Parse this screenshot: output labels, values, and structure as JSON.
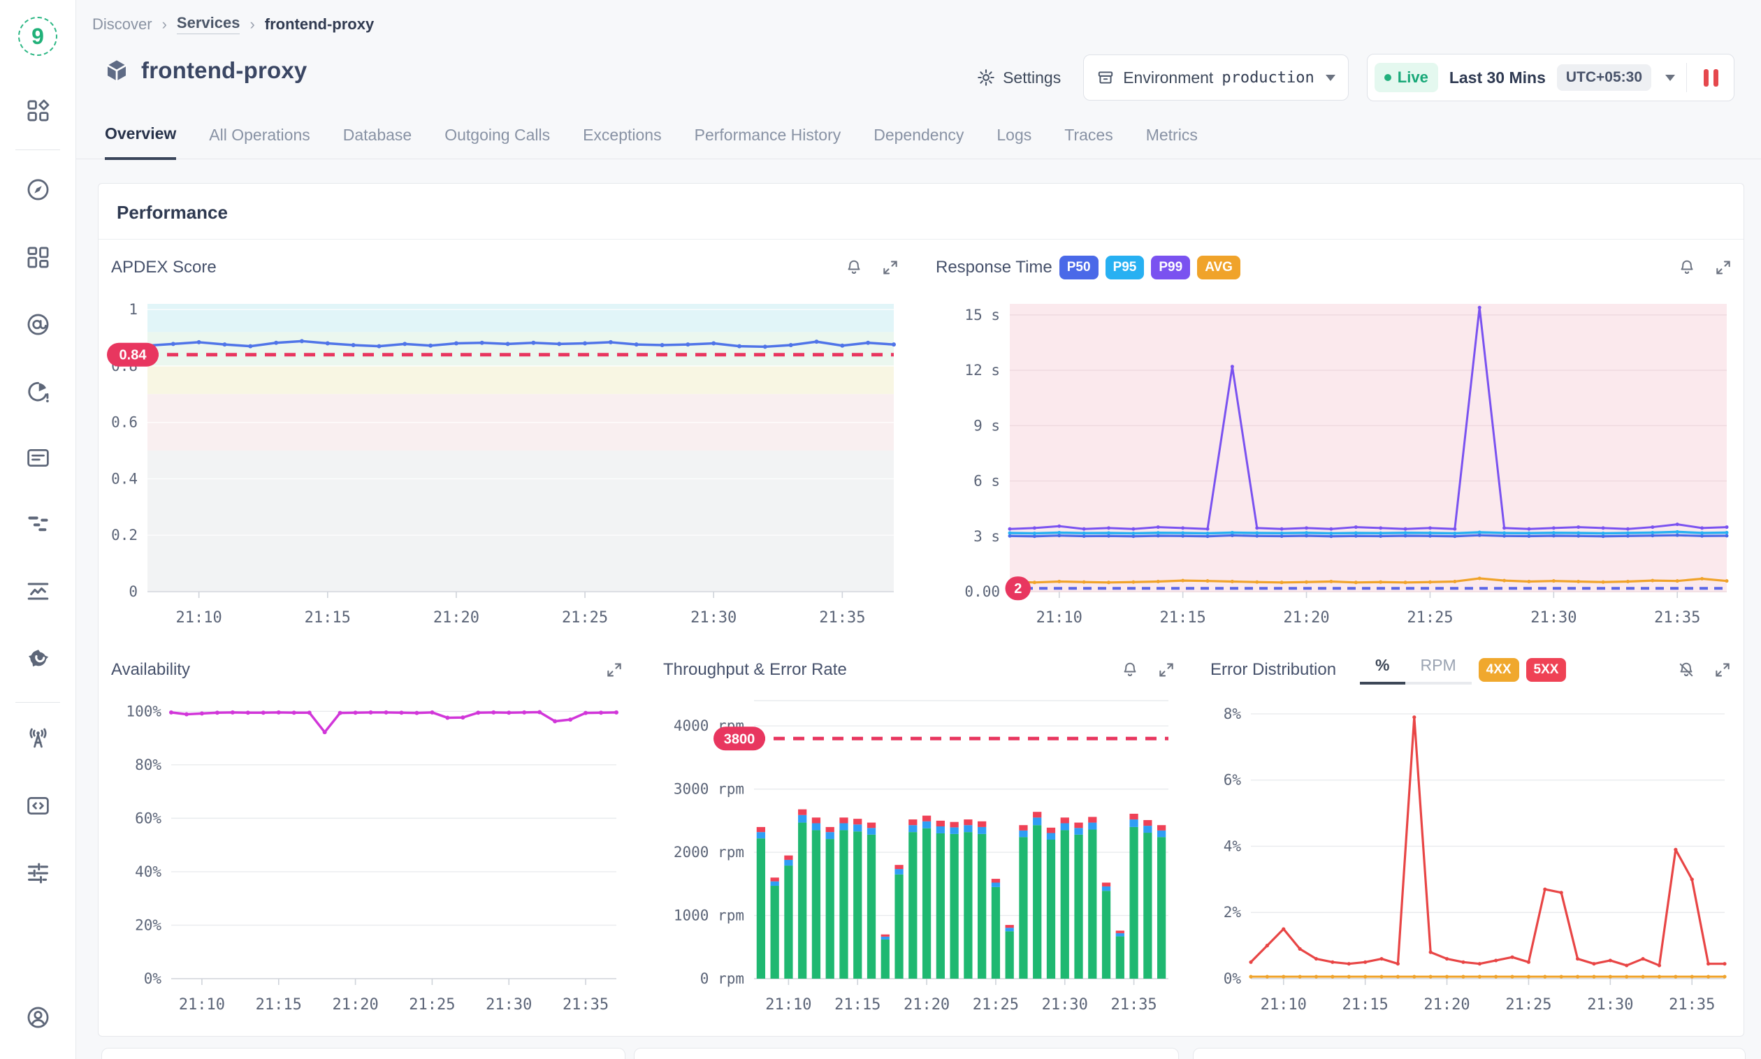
{
  "breadcrumb": {
    "root": "Discover",
    "section": "Services",
    "current": "frontend-proxy"
  },
  "header": {
    "service_name": "frontend-proxy",
    "settings_label": "Settings",
    "environment_label": "Environment",
    "environment_value": "production",
    "live_label": "Live",
    "time_range": "Last 30 Mins",
    "timezone": "UTC+05:30"
  },
  "sidebar_icons": [
    "home-grid-icon",
    "compass-icon",
    "dashboards-icon",
    "service-map-icon",
    "usage-alert-icon",
    "billing-card-icon",
    "traces-scatter-icon",
    "metrics-chart-icon",
    "grafana-icon",
    "broadcast-icon",
    "integrations-code-icon",
    "pipelines-sliders-icon",
    "account-icon"
  ],
  "tabs": [
    "Overview",
    "All Operations",
    "Database",
    "Outgoing Calls",
    "Exceptions",
    "Performance History",
    "Dependency",
    "Logs",
    "Traces",
    "Metrics"
  ],
  "active_tab": "Overview",
  "section_title": "Performance",
  "panels": {
    "apdex_title": "APDEX Score",
    "response_title": "Response Time",
    "response_badges": [
      "P50",
      "P95",
      "P99",
      "AVG"
    ],
    "availability_title": "Availability",
    "throughput_title": "Throughput & Error Rate",
    "errordist_title": "Error Distribution",
    "errordist_toggle_pct": "%",
    "errordist_toggle_rpm": "RPM",
    "errordist_badges": [
      "4XX",
      "5XX"
    ],
    "icon_names": [
      "alert-bell-icon",
      "expand-icon",
      "bell-muted-icon"
    ]
  },
  "colors": {
    "p50": "#4a69e8",
    "p95": "#27b0f2",
    "p99": "#7a52f0",
    "avg": "#f0a32a",
    "threshold_red": "#e8365f",
    "bar_green": "#1fb871",
    "bar_blue": "#2f9ef5",
    "bar_red": "#ef4156",
    "availability_magenta": "#d136d9",
    "error_5xx": "#e84545",
    "error_4xx": "#f0a32a",
    "live_green": "#18a878",
    "pause_red": "#e5484d",
    "badge_4xx": "#f0a82d",
    "badge_5xx": "#ef4255"
  },
  "chart_data": [
    {
      "id": "apdex",
      "type": "line",
      "title": "APDEX Score",
      "n": 30,
      "ylim": [
        0,
        1.02
      ],
      "grid_color": "rgba(255,255,255,0.85)",
      "baseline": true,
      "yticks": [
        {
          "v": 1,
          "label": "1"
        },
        {
          "v": 0.8,
          "label": "0.8"
        },
        {
          "v": 0.6,
          "label": "0.6"
        },
        {
          "v": 0.4,
          "label": "0.4"
        },
        {
          "v": 0.2,
          "label": "0.2"
        },
        {
          "v": 0,
          "label": "0"
        }
      ],
      "x_ticks": [
        {
          "i": 2,
          "label": "21:10"
        },
        {
          "i": 7,
          "label": "21:15"
        },
        {
          "i": 12,
          "label": "21:20"
        },
        {
          "i": 17,
          "label": "21:25"
        },
        {
          "i": 22,
          "label": "21:30"
        },
        {
          "i": 27,
          "label": "21:35"
        }
      ],
      "bands": [
        {
          "from": 0.92,
          "to": 1.02,
          "color": "#e1f5f8"
        },
        {
          "from": 0.8,
          "to": 0.92,
          "color": "#ebf7ef"
        },
        {
          "from": 0.7,
          "to": 0.8,
          "color": "#f8f6e3"
        },
        {
          "from": 0.5,
          "to": 0.7,
          "color": "#f9eff0"
        },
        {
          "from": 0,
          "to": 0.5,
          "color": "#f2f3f4"
        }
      ],
      "thresholds": [
        {
          "v": 0.84,
          "color": "#e8365f",
          "badge": "0.84",
          "width": 5
        }
      ],
      "series": [
        {
          "name": "apdex",
          "color": "#4f74e8",
          "width": 3.5,
          "marker": 3,
          "values": [
            0.872,
            0.878,
            0.884,
            0.876,
            0.87,
            0.882,
            0.888,
            0.88,
            0.874,
            0.87,
            0.878,
            0.872,
            0.88,
            0.882,
            0.878,
            0.882,
            0.878,
            0.88,
            0.884,
            0.876,
            0.874,
            0.876,
            0.88,
            0.87,
            0.868,
            0.874,
            0.886,
            0.872,
            0.882,
            0.876
          ]
        }
      ]
    },
    {
      "id": "response",
      "type": "line",
      "title": "Response Time",
      "n": 30,
      "ylim": [
        0,
        15.6
      ],
      "grid_color": "#eed9de",
      "yticks": [
        {
          "v": 15,
          "label": "15 s"
        },
        {
          "v": 12,
          "label": "12 s"
        },
        {
          "v": 9,
          "label": "9 s"
        },
        {
          "v": 6,
          "label": "6 s"
        },
        {
          "v": 3,
          "label": "3 s"
        },
        {
          "v": 0,
          "label": "0.00"
        }
      ],
      "x_ticks": [
        {
          "i": 2,
          "label": "21:10"
        },
        {
          "i": 7,
          "label": "21:15"
        },
        {
          "i": 12,
          "label": "21:20"
        },
        {
          "i": 17,
          "label": "21:25"
        },
        {
          "i": 22,
          "label": "21:30"
        },
        {
          "i": 27,
          "label": "21:35"
        }
      ],
      "bands": [
        {
          "from": 0,
          "to": 15.6,
          "color": "#fbe9ed"
        }
      ],
      "thresholds": [
        {
          "v": 0.18,
          "color": "#5b67e8",
          "badge": "2",
          "badge_bg": "#e8365f",
          "width": 4,
          "dash": "12 9",
          "badge_dx": 30
        }
      ],
      "series": [
        {
          "name": "AVG",
          "color": "#f0a32a",
          "width": 3.2,
          "marker": 2.5,
          "values": [
            0.55,
            0.5,
            0.55,
            0.52,
            0.5,
            0.52,
            0.55,
            0.6,
            0.58,
            0.55,
            0.52,
            0.5,
            0.52,
            0.55,
            0.5,
            0.52,
            0.5,
            0.52,
            0.55,
            0.72,
            0.6,
            0.55,
            0.58,
            0.55,
            0.52,
            0.55,
            0.6,
            0.58,
            0.7,
            0.58
          ]
        },
        {
          "name": "P50",
          "color": "#4a69e8",
          "width": 3.2,
          "marker": 2.5,
          "values": [
            3.02,
            3.0,
            3.04,
            3.01,
            3.02,
            3.0,
            3.03,
            3.02,
            3.0,
            3.05,
            3.02,
            3.01,
            3.03,
            3.0,
            3.02,
            3.01,
            3.03,
            3.02,
            3.0,
            3.06,
            3.02,
            3.01,
            3.03,
            3.02,
            3.0,
            3.02,
            3.04,
            3.06,
            3.02,
            3.03
          ]
        },
        {
          "name": "P95",
          "color": "#27b0f2",
          "width": 3.5,
          "marker": 2.5,
          "values": [
            3.18,
            3.16,
            3.2,
            3.17,
            3.18,
            3.16,
            3.19,
            3.18,
            3.16,
            3.2,
            3.18,
            3.17,
            3.19,
            3.16,
            3.18,
            3.17,
            3.19,
            3.18,
            3.16,
            3.22,
            3.18,
            3.17,
            3.19,
            3.18,
            3.16,
            3.18,
            3.2,
            3.24,
            3.18,
            3.2
          ]
        },
        {
          "name": "P99",
          "color": "#7a52f0",
          "width": 3,
          "marker": 2.5,
          "values": [
            3.4,
            3.45,
            3.55,
            3.4,
            3.45,
            3.4,
            3.5,
            3.45,
            3.4,
            12.2,
            3.45,
            3.4,
            3.45,
            3.4,
            3.5,
            3.45,
            3.4,
            3.45,
            3.4,
            15.4,
            3.45,
            3.4,
            3.45,
            3.5,
            3.45,
            3.4,
            3.5,
            3.65,
            3.45,
            3.5
          ]
        }
      ]
    },
    {
      "id": "availability",
      "type": "line",
      "title": "Availability",
      "n": 30,
      "ylim": [
        0,
        104
      ],
      "baseline": true,
      "yticks": [
        {
          "v": 100,
          "label": "100%"
        },
        {
          "v": 80,
          "label": "80%"
        },
        {
          "v": 60,
          "label": "60%"
        },
        {
          "v": 40,
          "label": "40%"
        },
        {
          "v": 20,
          "label": "20%"
        },
        {
          "v": 0,
          "label": "0%"
        }
      ],
      "x_ticks": [
        {
          "i": 2,
          "label": "21:10"
        },
        {
          "i": 7,
          "label": "21:15"
        },
        {
          "i": 12,
          "label": "21:20"
        },
        {
          "i": 17,
          "label": "21:25"
        },
        {
          "i": 22,
          "label": "21:30"
        },
        {
          "i": 27,
          "label": "21:35"
        }
      ],
      "series": [
        {
          "name": "availability",
          "color": "#d136d9",
          "width": 3.5,
          "marker": 3,
          "values": [
            99.6,
            98.9,
            99.2,
            99.5,
            99.6,
            99.5,
            99.5,
            99.6,
            99.5,
            99.5,
            92.2,
            99.4,
            99.5,
            99.6,
            99.6,
            99.5,
            99.4,
            99.6,
            97.6,
            97.7,
            99.5,
            99.6,
            99.5,
            99.6,
            99.7,
            96.3,
            96.9,
            99.4,
            99.5,
            99.6
          ]
        }
      ]
    },
    {
      "id": "throughput",
      "type": "bar",
      "title": "Throughput & Error Rate",
      "n": 30,
      "ylim": [
        0,
        4400
      ],
      "baseline": true,
      "top_line": true,
      "yticks": [
        {
          "v": 4000,
          "label": "4000 rpm"
        },
        {
          "v": 3000,
          "label": "3000 rpm"
        },
        {
          "v": 2000,
          "label": "2000 rpm"
        },
        {
          "v": 1000,
          "label": "1000 rpm"
        },
        {
          "v": 0,
          "label": "0 rpm"
        }
      ],
      "x_ticks": [
        {
          "i": 2,
          "label": "21:10"
        },
        {
          "i": 7,
          "label": "21:15"
        },
        {
          "i": 12,
          "label": "21:20"
        },
        {
          "i": 17,
          "label": "21:25"
        },
        {
          "i": 22,
          "label": "21:30"
        },
        {
          "i": 27,
          "label": "21:35"
        }
      ],
      "thresholds": [
        {
          "v": 3800,
          "color": "#e8365f",
          "badge": "3800",
          "width": 5
        }
      ],
      "stack": [
        {
          "name": "success",
          "color": "#1fb871",
          "values": [
            2220,
            1470,
            1790,
            2470,
            2350,
            2210,
            2350,
            2330,
            2280,
            620,
            1650,
            2320,
            2380,
            2300,
            2290,
            2320,
            2290,
            1450,
            750,
            2240,
            2430,
            2200,
            2350,
            2280,
            2360,
            1390,
            670,
            2400,
            2310,
            2240
          ]
        },
        {
          "name": "4xx",
          "color": "#2f9ef5",
          "values": [
            100,
            70,
            90,
            120,
            110,
            110,
            110,
            110,
            105,
            45,
            85,
            110,
            110,
            110,
            105,
            110,
            110,
            70,
            55,
            105,
            120,
            105,
            110,
            105,
            110,
            70,
            50,
            120,
            110,
            105
          ]
        },
        {
          "name": "5xx",
          "color": "#ef4156",
          "values": [
            80,
            60,
            70,
            90,
            90,
            80,
            90,
            90,
            85,
            35,
            65,
            90,
            90,
            90,
            85,
            90,
            90,
            60,
            45,
            85,
            90,
            85,
            90,
            85,
            90,
            60,
            40,
            90,
            90,
            85
          ]
        }
      ]
    },
    {
      "id": "errordist",
      "type": "line",
      "title": "Error Distribution",
      "n": 30,
      "ylim": [
        0,
        8.4
      ],
      "baseline": true,
      "yticks": [
        {
          "v": 8,
          "label": "8%"
        },
        {
          "v": 6,
          "label": "6%"
        },
        {
          "v": 4,
          "label": "4%"
        },
        {
          "v": 2,
          "label": "2%"
        },
        {
          "v": 0,
          "label": "0%"
        }
      ],
      "x_ticks": [
        {
          "i": 2,
          "label": "21:10"
        },
        {
          "i": 7,
          "label": "21:15"
        },
        {
          "i": 12,
          "label": "21:20"
        },
        {
          "i": 17,
          "label": "21:25"
        },
        {
          "i": 22,
          "label": "21:30"
        },
        {
          "i": 27,
          "label": "21:35"
        }
      ],
      "series": [
        {
          "name": "4XX",
          "color": "#f0a32a",
          "width": 3,
          "marker": 2.6,
          "values": [
            0.06,
            0.06,
            0.06,
            0.06,
            0.06,
            0.06,
            0.06,
            0.06,
            0.06,
            0.06,
            0.06,
            0.06,
            0.06,
            0.06,
            0.06,
            0.06,
            0.06,
            0.06,
            0.06,
            0.06,
            0.06,
            0.06,
            0.06,
            0.06,
            0.06,
            0.06,
            0.06,
            0.06,
            0.06,
            0.06
          ]
        },
        {
          "name": "5XX",
          "color": "#e84545",
          "width": 3.2,
          "marker": 2.6,
          "values": [
            0.5,
            1.0,
            1.5,
            0.9,
            0.6,
            0.5,
            0.45,
            0.5,
            0.6,
            0.45,
            7.9,
            0.8,
            0.6,
            0.5,
            0.45,
            0.55,
            0.65,
            0.5,
            2.7,
            2.6,
            0.6,
            0.45,
            0.55,
            0.4,
            0.6,
            0.4,
            3.9,
            3.0,
            0.45,
            0.45
          ]
        }
      ]
    }
  ]
}
